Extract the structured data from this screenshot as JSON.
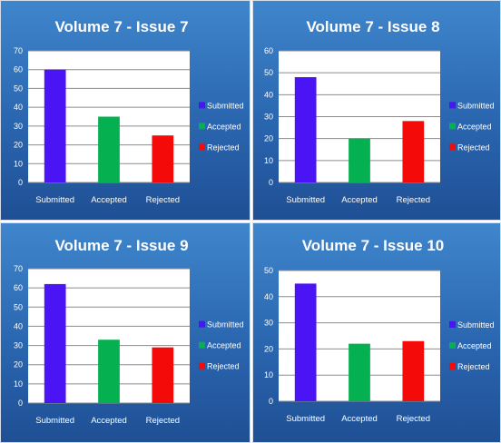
{
  "colors": {
    "submitted": "#4b14f5",
    "accepted": "#05b050",
    "rejected": "#f50a0a",
    "plot_bg": "#ffffff",
    "gridline": "#8c8c8c"
  },
  "chart_data": [
    {
      "type": "bar",
      "title": "Volume 7 - Issue 7",
      "categories": [
        "Submitted",
        "Accepted",
        "Rejected"
      ],
      "values": [
        60,
        35,
        25
      ],
      "ylim": [
        0,
        70
      ],
      "yticks": [
        "0",
        "10",
        "20",
        "30",
        "40",
        "50",
        "60",
        "70"
      ],
      "legend": [
        "Submitted",
        "Accepted",
        "Rejected"
      ],
      "legend_position": "right",
      "grid": true
    },
    {
      "type": "bar",
      "title": "Volume 7 - Issue 8",
      "categories": [
        "Submitted",
        "Accepted",
        "Rejected"
      ],
      "values": [
        48,
        20,
        28
      ],
      "ylim": [
        0,
        60
      ],
      "yticks": [
        "0",
        "10",
        "20",
        "30",
        "40",
        "50",
        "60"
      ],
      "legend": [
        "Submitted",
        "Accepted",
        "Rejected"
      ],
      "legend_position": "right",
      "grid": true
    },
    {
      "type": "bar",
      "title": "Volume 7 - Issue 9",
      "categories": [
        "Submitted",
        "Accepted",
        "Rejected"
      ],
      "values": [
        62,
        33,
        29
      ],
      "ylim": [
        0,
        70
      ],
      "yticks": [
        "0",
        "10",
        "20",
        "30",
        "40",
        "50",
        "60",
        "70"
      ],
      "legend": [
        "Submitted",
        "Accepted",
        "Rejected"
      ],
      "legend_position": "right",
      "grid": true
    },
    {
      "type": "bar",
      "title": "Volume 7 - Issue 10",
      "categories": [
        "Submitted",
        "Accepted",
        "Rejected"
      ],
      "values": [
        45,
        22,
        23
      ],
      "ylim": [
        0,
        50
      ],
      "yticks": [
        "0",
        "10",
        "20",
        "30",
        "40",
        "50"
      ],
      "legend": [
        "Submitted",
        "Accepted",
        "Rejected"
      ],
      "legend_position": "right",
      "grid": true
    }
  ]
}
